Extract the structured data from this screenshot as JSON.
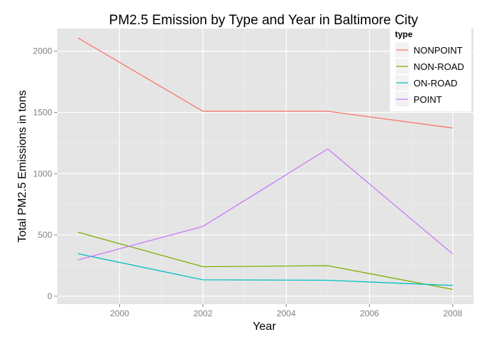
{
  "chart_data": {
    "type": "line",
    "title": "PM2.5 Emission by Type and Year in Baltimore City",
    "xlabel": "Year",
    "ylabel": "Total PM2.5 Emissions in tons",
    "x": [
      1999,
      2002,
      2005,
      2008
    ],
    "xlim": [
      1998.5,
      2008.5
    ],
    "ylim": [
      -65,
      2185
    ],
    "x_ticks": [
      2000,
      2002,
      2004,
      2006,
      2008
    ],
    "y_ticks": [
      0,
      500,
      1000,
      1500,
      2000
    ],
    "grid": true,
    "legend": {
      "title": "type",
      "placement": "top-right"
    },
    "series": [
      {
        "name": "NONPOINT",
        "color": "#F8766D",
        "values": [
          2108,
          1510,
          1510,
          1373
        ]
      },
      {
        "name": "NON-ROAD",
        "color": "#7CAE00",
        "values": [
          522,
          241,
          249,
          55
        ]
      },
      {
        "name": "ON-ROAD",
        "color": "#00BFC4",
        "values": [
          347,
          134,
          130,
          88
        ]
      },
      {
        "name": "POINT",
        "color": "#C77CFF",
        "values": [
          296,
          570,
          1202,
          344
        ]
      }
    ]
  }
}
